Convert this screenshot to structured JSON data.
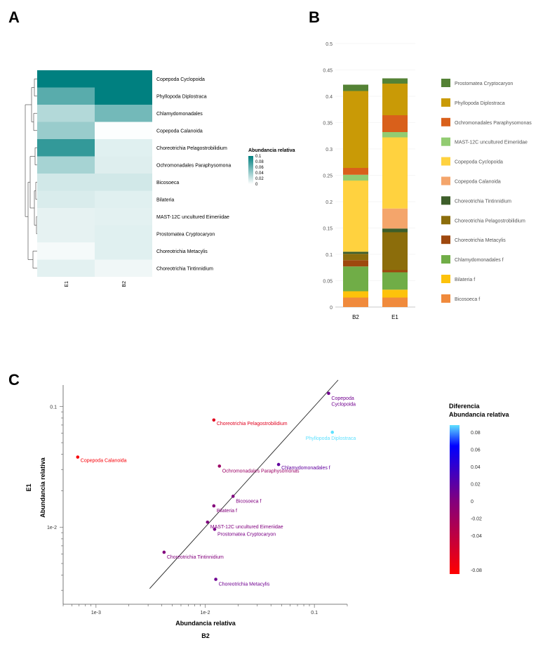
{
  "panels": {
    "a": "A",
    "b": "B",
    "c": "C"
  },
  "heatmap": {
    "columns": [
      "E1",
      "B2"
    ],
    "rows": [
      {
        "name": "Copepoda Cyclopoida",
        "E1": 0.1,
        "B2": 0.1
      },
      {
        "name": "Phyllopoda Diplostraca",
        "E1": 0.065,
        "B2": 0.1
      },
      {
        "name": "Chlamydomonadales",
        "E1": 0.03,
        "B2": 0.055
      },
      {
        "name": "Copepoda Calanoida",
        "E1": 0.04,
        "B2": 0.001
      },
      {
        "name": "Choreotrichia Pelagostrobilidium",
        "E1": 0.08,
        "B2": 0.012
      },
      {
        "name": "Ochromonadales Paraphysomona",
        "E1": 0.035,
        "B2": 0.013
      },
      {
        "name": "Bicosoeca",
        "E1": 0.018,
        "B2": 0.018
      },
      {
        "name": "Bilateria",
        "E1": 0.015,
        "B2": 0.012
      },
      {
        "name": "MAST-12C uncultured Eimeriidae",
        "E1": 0.01,
        "B2": 0.011
      },
      {
        "name": "Prostomatea Cryptocaryon",
        "E1": 0.01,
        "B2": 0.012
      },
      {
        "name": "Choreotrichia Metacylis",
        "E1": 0.004,
        "B2": 0.012
      },
      {
        "name": "Choreotrichia Tintinnidium",
        "E1": 0.011,
        "B2": 0.006
      }
    ],
    "legend": {
      "title": "Abundancia relativa",
      "ticks": [
        "0.1",
        "0.08",
        "0.06",
        "0.04",
        "0.02",
        "0"
      ]
    },
    "max": 0.1
  },
  "chart_data": [
    {
      "type": "bar",
      "stacked": true,
      "categories": [
        "B2",
        "E1"
      ],
      "ylim": [
        0,
        0.5
      ],
      "yticks": [
        "0",
        "0.05",
        "0.1",
        "0.15",
        "0.2",
        "0.25",
        "0.3",
        "0.35",
        "0.4",
        "0.45",
        "0.5"
      ],
      "series": [
        {
          "name": "Bicosoeca f",
          "color": "#F08A3C",
          "values": [
            0.018,
            0.018
          ]
        },
        {
          "name": "Bilateria f",
          "color": "#FDC20B",
          "values": [
            0.012,
            0.015
          ]
        },
        {
          "name": "Chlamydomonadales f",
          "color": "#70AD47",
          "values": [
            0.047,
            0.033
          ]
        },
        {
          "name": "Choreotrichia Metacylis",
          "color": "#9E480E",
          "values": [
            0.012,
            0.004
          ]
        },
        {
          "name": "Choreotrichia Pelagostrobilidium",
          "color": "#8C6D0B",
          "values": [
            0.012,
            0.072
          ]
        },
        {
          "name": "Choreotrichia Tintinnidium",
          "color": "#3D5E2A",
          "values": [
            0.004,
            0.007
          ]
        },
        {
          "name": "Copepoda Calanoida",
          "color": "#F4A56B",
          "values": [
            0.0,
            0.038
          ]
        },
        {
          "name": "Copepoda Cyclopoida",
          "color": "#FFD23F",
          "values": [
            0.135,
            0.135
          ]
        },
        {
          "name": "MAST-12C uncultured Eimeriidae",
          "color": "#92CC72",
          "values": [
            0.011,
            0.01
          ]
        },
        {
          "name": "Ochromonadales Paraphysomonas",
          "color": "#D9601B",
          "values": [
            0.013,
            0.032
          ]
        },
        {
          "name": "Phyllopoda Diplostraca",
          "color": "#C99A06",
          "values": [
            0.146,
            0.06
          ]
        },
        {
          "name": "Prostomatea Cryptocaryon",
          "color": "#548235",
          "values": [
            0.012,
            0.01
          ]
        }
      ]
    },
    {
      "type": "scatter",
      "xscale": "log",
      "yscale": "log",
      "xlim": [
        0.0005,
        0.2
      ],
      "ylim": [
        0.0023,
        0.15
      ],
      "xticks": [
        {
          "v": 0.001,
          "label": "1e-3"
        },
        {
          "v": 0.01,
          "label": "1e-2"
        },
        {
          "v": 0.1,
          "label": "0.1"
        }
      ],
      "yticks": [
        {
          "v": 0.01,
          "label": "1e-2"
        },
        {
          "v": 0.1,
          "label": "0.1"
        }
      ],
      "xlabel": "Abundancia relativa",
      "xlabel2": "B2",
      "ylabel": "Abundancia relativa",
      "ylabel2": "E1",
      "legend": {
        "title1": "Diferencia",
        "title2": "Abundancia relativa",
        "ticks": [
          "0.08",
          "0.06",
          "0.04",
          "0.02",
          "0",
          "-0.02",
          "-0.04",
          "-0.08"
        ]
      },
      "points": [
        {
          "name": "Copepoda Cyclopoida",
          "lines": [
            "Copepoda",
            "Cyclopoida"
          ],
          "x": 0.135,
          "y": 0.128,
          "diff": 0.007,
          "anchor": "belowleft"
        },
        {
          "name": "Phyllopoda Diplostraca",
          "lines": [
            "Phyllopoda Diplostraca"
          ],
          "x": 0.146,
          "y": 0.061,
          "diff": 0.085,
          "anchor": "below"
        },
        {
          "name": "Choreotrichia Pelagostrobilidium",
          "lines": [
            "Choreotrichia Pelagostrobilidium"
          ],
          "x": 0.012,
          "y": 0.077,
          "diff": -0.065,
          "anchor": "right"
        },
        {
          "name": "Copepoda Calanoida",
          "lines": [
            "Copepoda Calanoida"
          ],
          "x": 0.00068,
          "y": 0.038,
          "diff": -0.08,
          "anchor": "right"
        },
        {
          "name": "Chlamydomonadales f",
          "lines": [
            "Chlamydomonadales f"
          ],
          "x": 0.047,
          "y": 0.033,
          "diff": 0.014,
          "anchor": "right"
        },
        {
          "name": "Ochromonadales Paraphysomonas",
          "lines": [
            "Ochromonadales Paraphysomonas"
          ],
          "x": 0.0135,
          "y": 0.032,
          "diff": -0.018,
          "anchor": "belowleft"
        },
        {
          "name": "Bicosoeca f",
          "lines": [
            "Bicosoeca f"
          ],
          "x": 0.018,
          "y": 0.018,
          "diff": 0.0,
          "anchor": "belowleft"
        },
        {
          "name": "Bilateria f",
          "lines": [
            "Bilateria f"
          ],
          "x": 0.012,
          "y": 0.015,
          "diff": -0.003,
          "anchor": "belowleft"
        },
        {
          "name": "MAST-12C uncultured Eimeriidae",
          "lines": [
            "MAST-12C uncultured Eimeriidae"
          ],
          "x": 0.0105,
          "y": 0.011,
          "diff": -0.0005,
          "anchor": "belowleft"
        },
        {
          "name": "Prostomatea Cryptocaryon",
          "lines": [
            "Prostomatea Cryptocaryon"
          ],
          "x": 0.0122,
          "y": 0.0096,
          "diff": 0.003,
          "anchor": "belowleft"
        },
        {
          "name": "Choreotrichia Tintinnidium",
          "lines": [
            "Choreotrichia Tintinnidium"
          ],
          "x": 0.0042,
          "y": 0.0062,
          "diff": -0.002,
          "anchor": "belowleft"
        },
        {
          "name": "Choreotrichia Metacylis",
          "lines": [
            "Choreotrichia Metacylis"
          ],
          "x": 0.0125,
          "y": 0.0037,
          "diff": 0.008,
          "anchor": "belowleft"
        }
      ]
    }
  ]
}
